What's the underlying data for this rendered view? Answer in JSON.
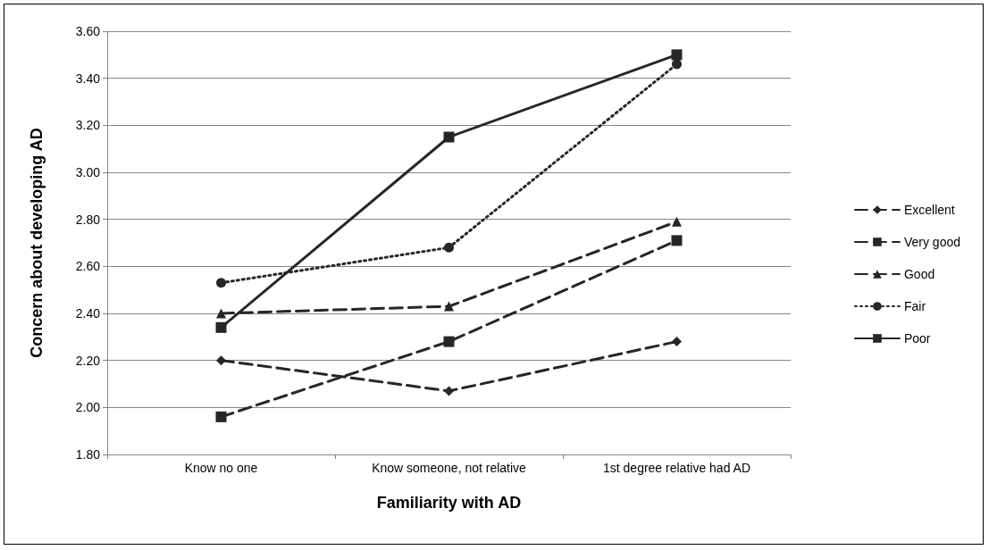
{
  "chart_data": {
    "type": "line",
    "xlabel": "Familiarity with AD",
    "ylabel": "Concern about developing AD",
    "categories": [
      "Know no one",
      "Know someone, not relative",
      "1st degree relative had AD"
    ],
    "ylim": [
      1.8,
      3.6
    ],
    "yticks": [
      {
        "value": 1.8,
        "label": "1.80"
      },
      {
        "value": 2.0,
        "label": "2.00"
      },
      {
        "value": 2.2,
        "label": "2.20"
      },
      {
        "value": 2.4,
        "label": "2.40"
      },
      {
        "value": 2.6,
        "label": "2.60"
      },
      {
        "value": 2.8,
        "label": "2.80"
      },
      {
        "value": 3.0,
        "label": "3.00"
      },
      {
        "value": 3.2,
        "label": "3.20"
      },
      {
        "value": 3.4,
        "label": "3.40"
      },
      {
        "value": 3.6,
        "label": "3.60"
      }
    ],
    "grid": "y",
    "legend": "right",
    "series": [
      {
        "name": "Excellent",
        "color": "#262626",
        "marker": "diamond",
        "line_style": "dashed",
        "values": [
          2.2,
          2.07,
          2.28
        ]
      },
      {
        "name": "Very good",
        "color": "#262626",
        "marker": "square",
        "line_style": "dashed",
        "values": [
          1.96,
          2.28,
          2.71
        ]
      },
      {
        "name": "Good",
        "color": "#262626",
        "marker": "triangle",
        "line_style": "dashed",
        "values": [
          2.4,
          2.43,
          2.79
        ]
      },
      {
        "name": "Fair",
        "color": "#262626",
        "marker": "circle",
        "line_style": "dotted",
        "values": [
          2.53,
          2.68,
          3.46
        ]
      },
      {
        "name": "Poor",
        "color": "#262626",
        "marker": "square",
        "line_style": "solid",
        "values": [
          2.34,
          3.15,
          3.5
        ]
      }
    ]
  }
}
